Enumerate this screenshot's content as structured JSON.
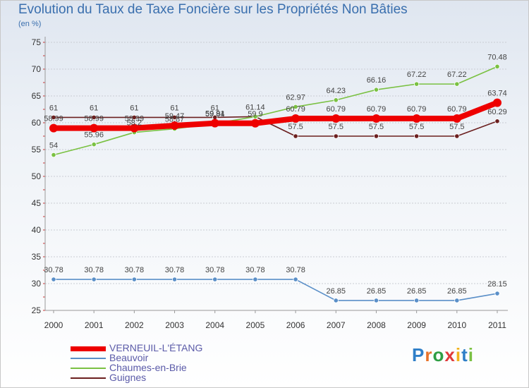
{
  "title": "Evolution du Taux de Taxe Foncière sur les Propriétés Non Bâties",
  "unit": "(en %)",
  "logo": "Proxiti",
  "chart_data": {
    "type": "line",
    "categories": [
      "2000",
      "2001",
      "2002",
      "2003",
      "2004",
      "2005",
      "2006",
      "2007",
      "2008",
      "2009",
      "2010",
      "2011"
    ],
    "ylim": [
      25,
      75
    ],
    "yticks": [
      25,
      30,
      35,
      40,
      45,
      50,
      55,
      60,
      65,
      70,
      75
    ],
    "series": [
      {
        "name": "Guignes",
        "color": "#6b1f1f",
        "values": [
          61,
          61,
          61,
          61,
          61,
          61.14,
          57.5,
          57.5,
          57.5,
          57.5,
          57.5,
          60.29
        ],
        "labels": [
          "61",
          "61",
          "61",
          "61",
          "61",
          "61.14",
          "57.5",
          "57.5",
          "57.5",
          "57.5",
          "57.5",
          "60.29"
        ]
      },
      {
        "name": "Chaumes-en-Brie",
        "color": "#7ac142",
        "values": [
          54,
          55.96,
          58.2,
          58.87,
          59.84,
          61.14,
          62.97,
          64.23,
          66.16,
          67.22,
          67.22,
          70.48
        ],
        "labels": [
          "54",
          "55.96",
          "58.2",
          "58.87",
          "59.84",
          "",
          "62.97",
          "64.23",
          "66.16",
          "67.22",
          "67.22",
          "70.48"
        ]
      },
      {
        "name": "Beauvoir",
        "color": "#5a8fc8",
        "values": [
          30.78,
          30.78,
          30.78,
          30.78,
          30.78,
          30.78,
          30.78,
          26.85,
          26.85,
          26.85,
          26.85,
          28.15
        ],
        "labels": [
          "30.78",
          "30.78",
          "30.78",
          "30.78",
          "30.78",
          "30.78",
          "30.78",
          "26.85",
          "26.85",
          "26.85",
          "26.85",
          "28.15"
        ]
      },
      {
        "name": "VERNEUIL-L'ÉTANG",
        "color": "#ee0000",
        "values": [
          58.99,
          58.99,
          58.99,
          59.47,
          59.91,
          59.9,
          60.79,
          60.79,
          60.79,
          60.79,
          60.79,
          63.74
        ],
        "labels": [
          "58.99",
          "58.99",
          "58.99",
          "59.47",
          "59.91",
          "59.9",
          "60.79",
          "60.79",
          "60.79",
          "60.79",
          "60.79",
          "63.74"
        ]
      }
    ],
    "legend": [
      "VERNEUIL-L'ÉTANG",
      "Beauvoir",
      "Chaumes-en-Brie",
      "Guignes"
    ]
  }
}
